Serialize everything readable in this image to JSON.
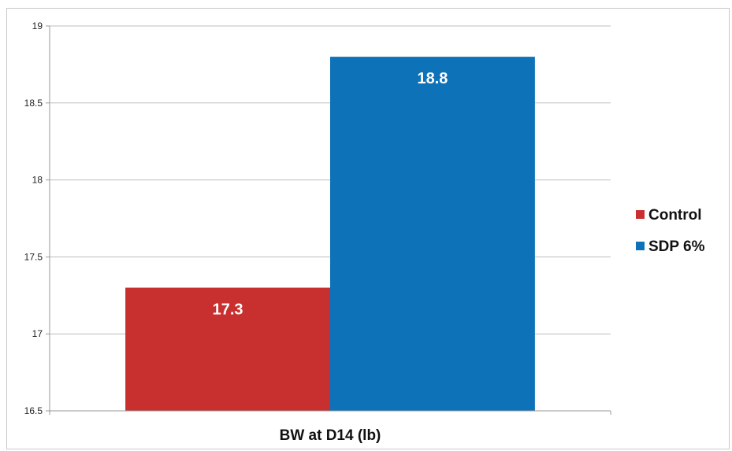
{
  "chart_data": {
    "type": "bar",
    "title": "",
    "xlabel": "",
    "ylabel": "",
    "categories": [
      "BW at D14 (lb)"
    ],
    "series": [
      {
        "name": "Control",
        "values": [
          17.3
        ],
        "color": "#c8302f"
      },
      {
        "name": "SDP 6%",
        "values": [
          18.8
        ],
        "color": "#0e72b8"
      }
    ],
    "ylim": [
      16.5,
      19
    ],
    "yticks": [
      16.5,
      17,
      17.5,
      18,
      18.5,
      19
    ],
    "grid": true,
    "legend": "right",
    "data_labels": true
  }
}
